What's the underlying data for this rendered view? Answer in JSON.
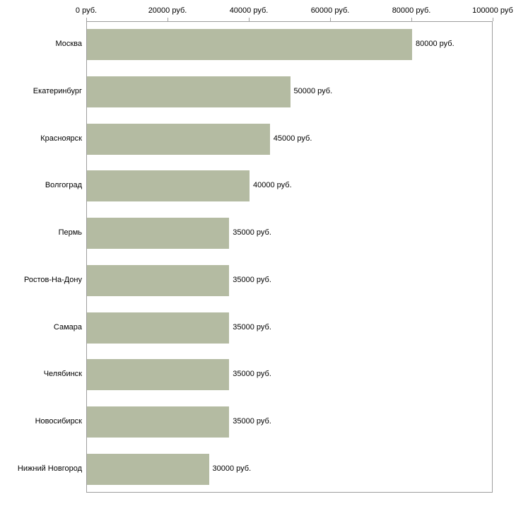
{
  "chart_data": {
    "type": "bar",
    "orientation": "horizontal",
    "title": "",
    "xlabel": "",
    "ylabel": "",
    "xlim": [
      0,
      100000
    ],
    "grid": false,
    "legend": "none",
    "bar_color": "#b4bba2",
    "axis_color": "#9e9e9e",
    "text_color": "#000000",
    "categories": [
      "Москва",
      "Екатеринбург",
      "Красноярск",
      "Волгоград",
      "Пермь",
      "Ростов-На-Дону",
      "Самара",
      "Челябинск",
      "Новосибирск",
      "Нижний Новгород"
    ],
    "values": [
      80000,
      50000,
      45000,
      40000,
      35000,
      35000,
      35000,
      35000,
      35000,
      30000
    ],
    "value_labels": [
      "80000 руб.",
      "50000 руб.",
      "45000 руб.",
      "40000 руб.",
      "35000 руб.",
      "35000 руб.",
      "35000 руб.",
      "35000 руб.",
      "35000 руб.",
      "30000 руб."
    ],
    "x_tick_values": [
      0,
      20000,
      40000,
      60000,
      80000,
      100000
    ],
    "x_tick_labels": [
      "0 руб.",
      "20000 руб.",
      "40000 руб.",
      "60000 руб.",
      "80000 руб.",
      "100000 руб"
    ]
  }
}
